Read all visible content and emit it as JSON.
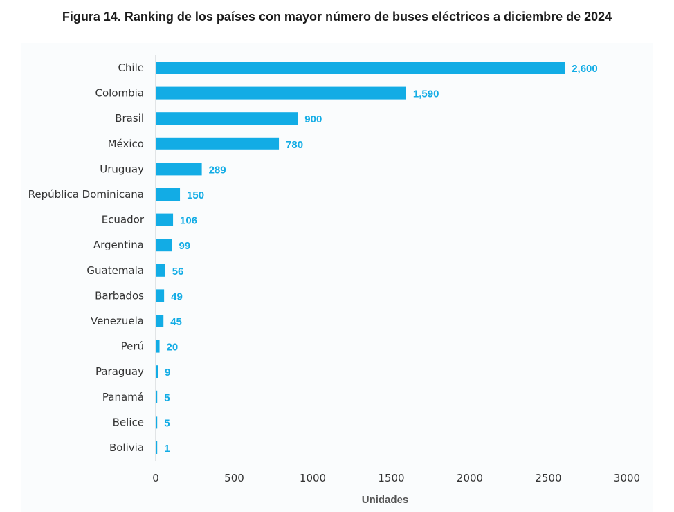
{
  "title": "Figura 14. Ranking de los países con mayor número de buses eléctricos a diciembre de 2024",
  "colors": {
    "bar": "#12ace5",
    "value_label": "#12ace5",
    "axis": "#c8ccd0"
  },
  "chart_data": {
    "type": "bar",
    "orientation": "horizontal",
    "categories": [
      "Chile",
      "Colombia",
      "Brasil",
      "México",
      "Uruguay",
      "República Dominicana",
      "Ecuador",
      "Argentina",
      "Guatemala",
      "Barbados",
      "Venezuela",
      "Perú",
      "Paraguay",
      "Panamá",
      "Belice",
      "Bolivia"
    ],
    "values": [
      2600,
      1590,
      900,
      780,
      289,
      150,
      106,
      99,
      56,
      49,
      45,
      20,
      9,
      5,
      5,
      1
    ],
    "value_labels": [
      "2,600",
      "1,590",
      "900",
      "780",
      "289",
      "150",
      "106",
      "99",
      "56",
      "49",
      "45",
      "20",
      "9",
      "5",
      "5",
      "1"
    ],
    "xlabel": "Unidades",
    "ylabel": "",
    "xlim": [
      0,
      3000
    ],
    "xticks": [
      0,
      500,
      1000,
      1500,
      2000,
      2500,
      3000
    ],
    "grid": false,
    "legend": "none"
  }
}
